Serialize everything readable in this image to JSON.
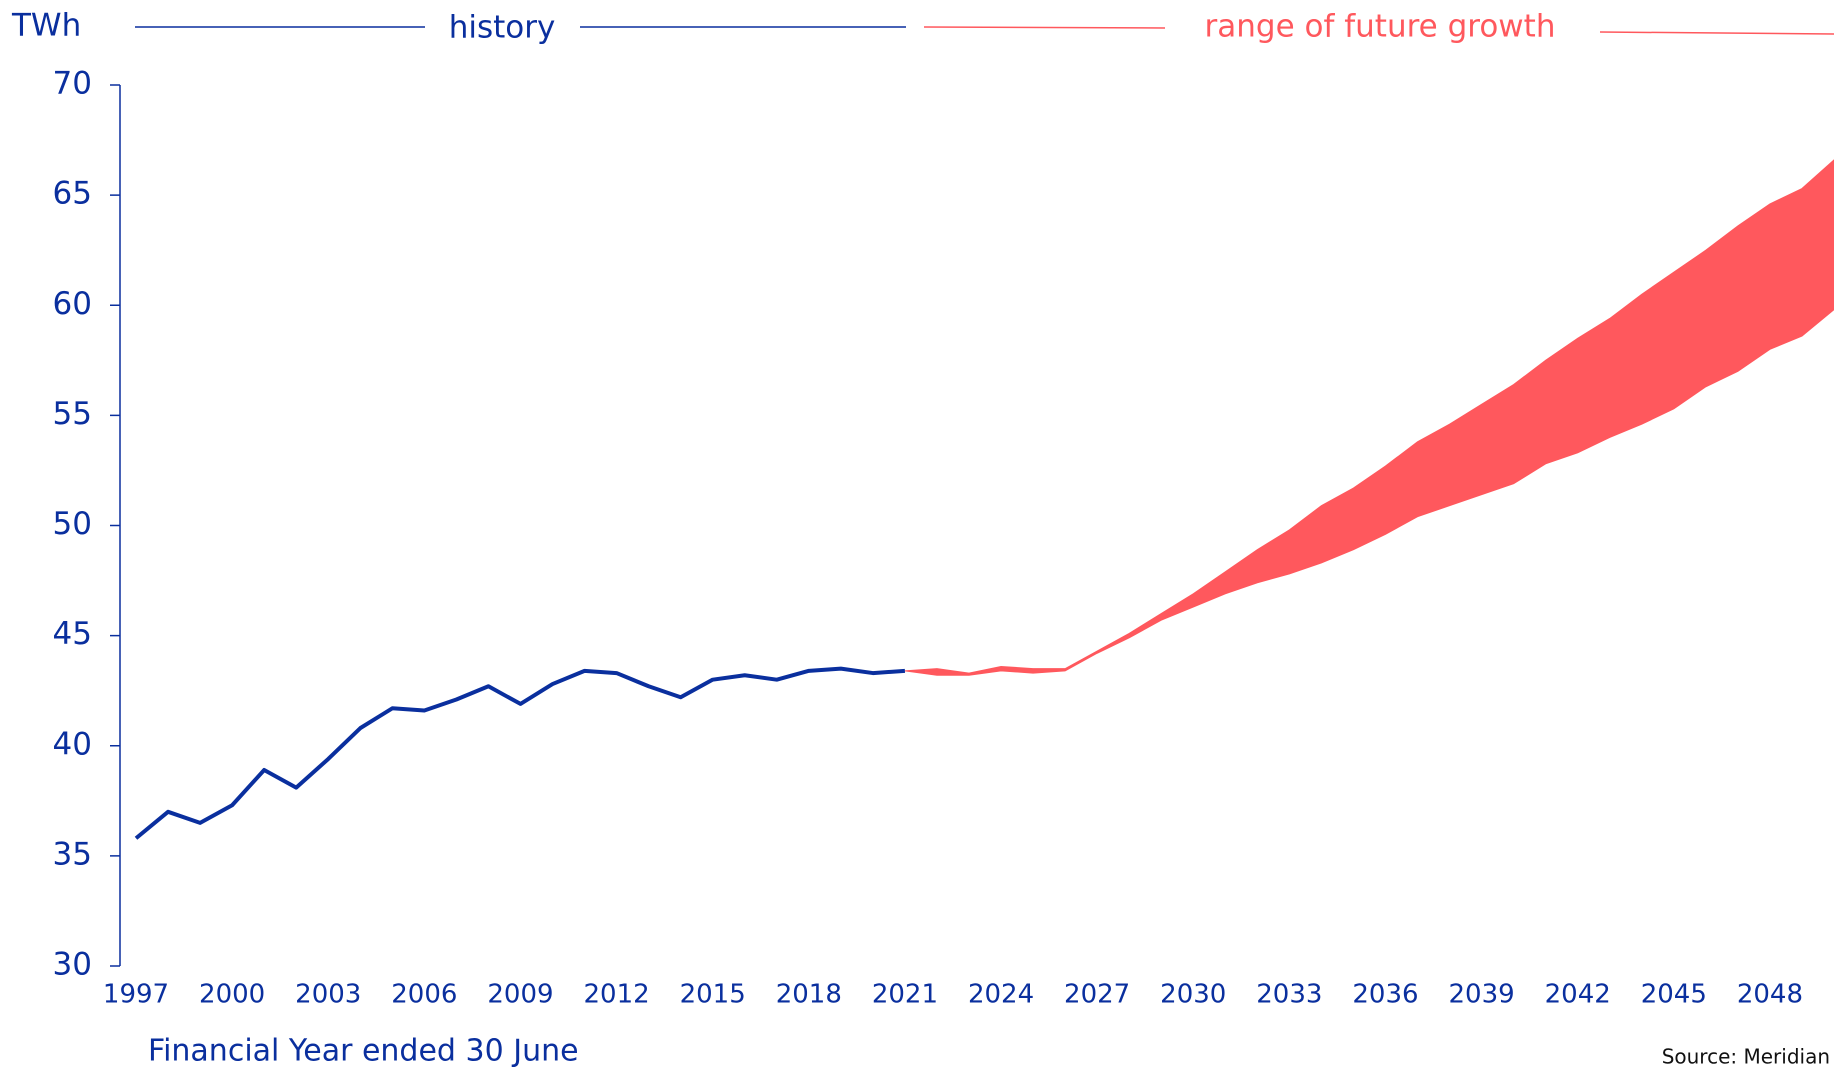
{
  "chart_data": {
    "type": "line",
    "y_label": "TWh",
    "x_label": "Financial Year ended 30 June",
    "source": "Source: Meridian",
    "xlim": [
      1996.5,
      2050
    ],
    "xticks": [
      1997,
      2000,
      2003,
      2006,
      2009,
      2012,
      2015,
      2018,
      2021,
      2024,
      2027,
      2030,
      2033,
      2036,
      2039,
      2042,
      2045,
      2048
    ],
    "ylim": [
      30,
      70
    ],
    "yticks": [
      30,
      35,
      40,
      45,
      50,
      55,
      60,
      65,
      70
    ],
    "series": [
      {
        "name": "history",
        "color": "#0a2f9e",
        "x": [
          1997,
          1998,
          1999,
          2000,
          2001,
          2002,
          2003,
          2004,
          2005,
          2006,
          2007,
          2008,
          2009,
          2010,
          2011,
          2012,
          2013,
          2014,
          2015,
          2016,
          2017,
          2018,
          2019,
          2020,
          2021
        ],
        "values": [
          35.8,
          37.0,
          36.5,
          37.3,
          38.9,
          38.1,
          39.4,
          40.8,
          41.7,
          41.6,
          42.1,
          42.7,
          41.9,
          42.8,
          43.4,
          43.3,
          42.7,
          42.2,
          43.0,
          43.2,
          43.0,
          43.4,
          43.5,
          43.3,
          43.4
        ]
      }
    ],
    "band": {
      "name": "range of future growth",
      "color": "#ff585d",
      "x": [
        2021,
        2022,
        2023,
        2024,
        2025,
        2026,
        2027,
        2028,
        2029,
        2030,
        2031,
        2032,
        2033,
        2034,
        2035,
        2036,
        2037,
        2038,
        2039,
        2040,
        2041,
        2042,
        2043,
        2044,
        2045,
        2046,
        2047,
        2048,
        2049,
        2050
      ],
      "upper": [
        43.4,
        43.5,
        43.3,
        43.6,
        43.5,
        43.5,
        44.3,
        45.1,
        46.0,
        46.9,
        47.9,
        48.9,
        49.8,
        50.9,
        51.7,
        52.7,
        53.8,
        54.6,
        55.5,
        56.4,
        57.5,
        58.5,
        59.4,
        60.5,
        61.5,
        62.5,
        63.6,
        64.6,
        65.3,
        66.6
      ],
      "lower": [
        43.4,
        43.2,
        43.2,
        43.4,
        43.3,
        43.4,
        44.2,
        44.9,
        45.7,
        46.3,
        46.9,
        47.4,
        47.8,
        48.3,
        48.9,
        49.6,
        50.4,
        50.9,
        51.4,
        51.9,
        52.8,
        53.3,
        54.0,
        54.6,
        55.3,
        56.3,
        57.0,
        58.0,
        58.6,
        59.8
      ]
    }
  }
}
